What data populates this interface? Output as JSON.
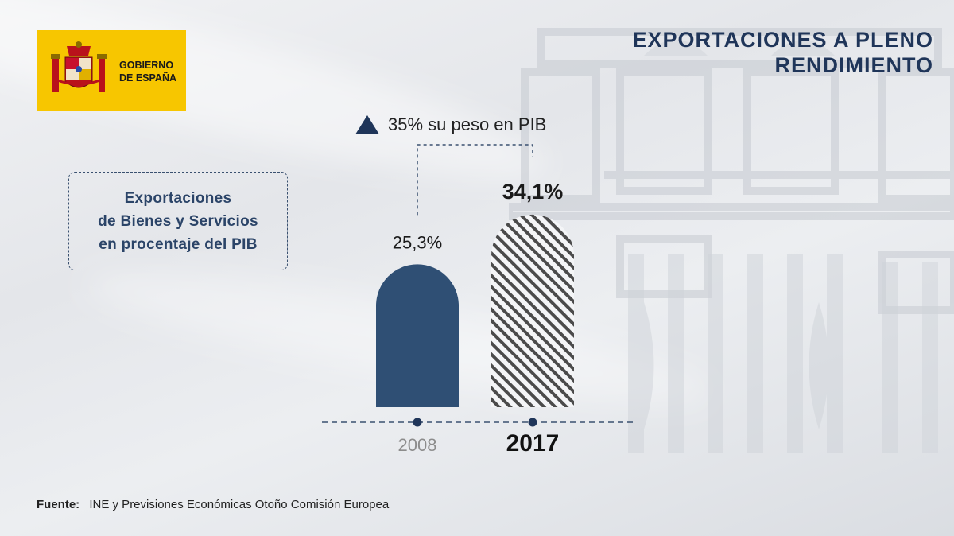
{
  "logo": {
    "line1": "GOBIERNO",
    "line2": "DE ESPAÑA"
  },
  "header": {
    "title_line1": "EXPORTACIONES A PLENO",
    "title_line2": "RENDIMIENTO"
  },
  "description": {
    "line1": "Exportaciones",
    "line2": "de Bienes y Servicios",
    "line3": "en procentaje del PIB"
  },
  "growth": {
    "text": "35% su peso en PIB",
    "icon": "up-triangle-icon"
  },
  "chart_data": {
    "type": "bar",
    "categories": [
      "2008",
      "2017"
    ],
    "values": [
      25.3,
      34.1
    ],
    "value_labels": [
      "25,3%",
      "34,1%"
    ],
    "ylim": [
      0,
      40
    ],
    "colors": {
      "2008": "#2f4f74",
      "2017": "hatched #4b4b4b"
    }
  },
  "footer": {
    "source_label": "Fuente:",
    "source_text": "INE y Previsiones Económicas Otoño Comisión Europea"
  },
  "colors": {
    "navy": "#1f3559",
    "bar_2008": "#2f4f74",
    "hatch": "#4b4b4b",
    "logo_yellow": "#f7c600"
  }
}
